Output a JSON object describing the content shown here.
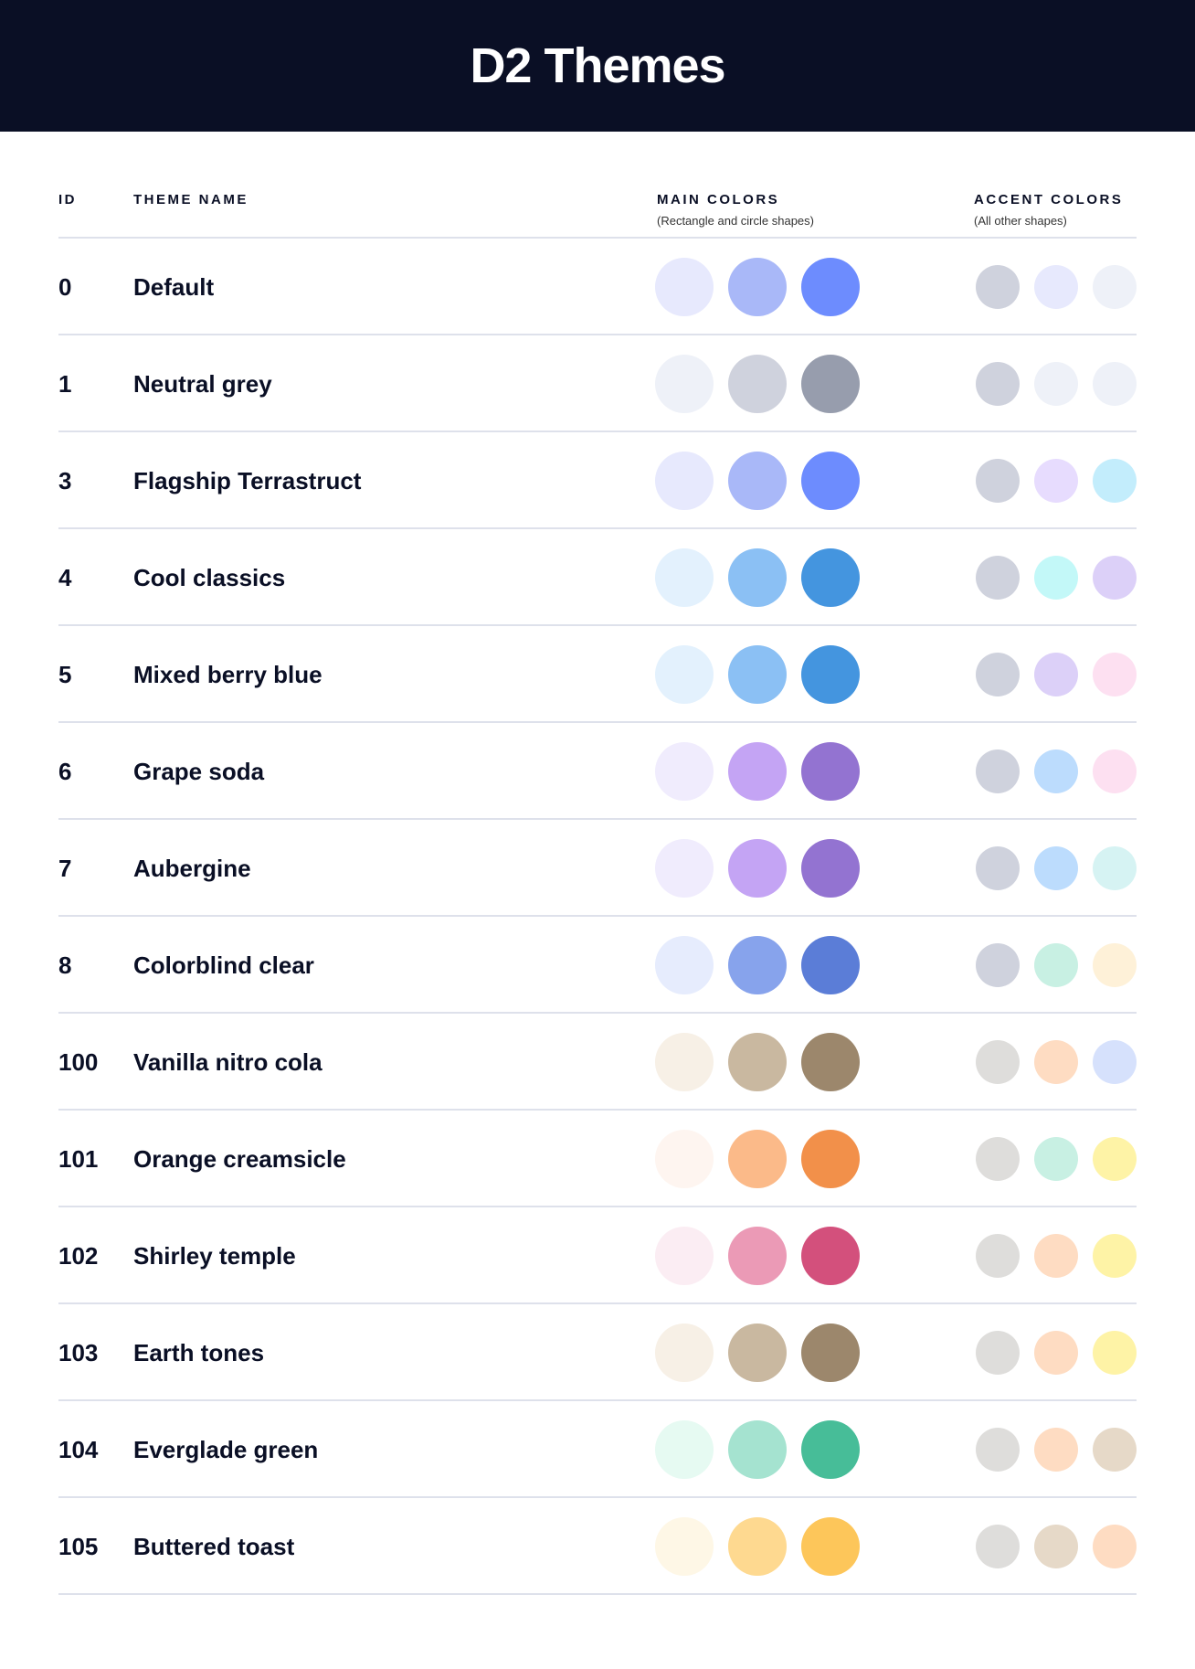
{
  "title": "D2 Themes",
  "headers": {
    "id": "ID",
    "name": "THEME NAME",
    "main": "MAIN COLORS",
    "main_sub": "(Rectangle and circle shapes)",
    "accent": "ACCENT COLORS",
    "accent_sub": "(All other shapes)"
  },
  "themes": [
    {
      "id": "0",
      "name": "Default",
      "main": [
        "#E7E9FD",
        "#A9B8F8",
        "#6D8CFE"
      ],
      "accent": [
        "#CFD2DD",
        "#E7E9FD",
        "#EEF1F8"
      ]
    },
    {
      "id": "1",
      "name": "Neutral grey",
      "main": [
        "#EEF1F8",
        "#CFD2DD",
        "#979DAD"
      ],
      "accent": [
        "#CFD2DD",
        "#EEF1F8",
        "#EEF1F8"
      ]
    },
    {
      "id": "3",
      "name": "Flagship Terrastruct",
      "main": [
        "#E7E9FD",
        "#A9B8F8",
        "#6D8CFE"
      ],
      "accent": [
        "#CFD2DD",
        "#E7DCFE",
        "#C3EDFC"
      ]
    },
    {
      "id": "4",
      "name": "Cool classics",
      "main": [
        "#E3F1FD",
        "#8BC0F4",
        "#4495DF"
      ],
      "accent": [
        "#CFD2DD",
        "#C3F8F8",
        "#DCD0F8"
      ]
    },
    {
      "id": "5",
      "name": "Mixed berry blue",
      "main": [
        "#E3F1FD",
        "#8BC0F4",
        "#4495DF"
      ],
      "accent": [
        "#CFD2DD",
        "#DCD0F8",
        "#FDE0F1"
      ]
    },
    {
      "id": "6",
      "name": "Grape soda",
      "main": [
        "#F0ECFD",
        "#C4A4F4",
        "#9373D1"
      ],
      "accent": [
        "#CFD2DD",
        "#BCDCFD",
        "#FDE0F1"
      ]
    },
    {
      "id": "7",
      "name": "Aubergine",
      "main": [
        "#F0ECFD",
        "#C4A4F4",
        "#9373D1"
      ],
      "accent": [
        "#CFD2DD",
        "#BCDCFD",
        "#D6F3F3"
      ]
    },
    {
      "id": "8",
      "name": "Colorblind clear",
      "main": [
        "#E6ECFD",
        "#87A3EC",
        "#5B7DD7"
      ],
      "accent": [
        "#CFD2DD",
        "#C8F0E3",
        "#FEF1D8"
      ]
    },
    {
      "id": "100",
      "name": "Vanilla nitro cola",
      "main": [
        "#F7F0E6",
        "#C9B8A0",
        "#9C876C"
      ],
      "accent": [
        "#DEDDDB",
        "#FEDCC2",
        "#D6E1FC"
      ]
    },
    {
      "id": "101",
      "name": "Orange creamsicle",
      "main": [
        "#FEF5F0",
        "#FBBA89",
        "#F2904A"
      ],
      "accent": [
        "#DEDDDB",
        "#C8F0E3",
        "#FEF3A6"
      ]
    },
    {
      "id": "102",
      "name": "Shirley temple",
      "main": [
        "#FBEDF3",
        "#EB9AB6",
        "#D3507C"
      ],
      "accent": [
        "#DEDDDB",
        "#FEDCC2",
        "#FEF3A6"
      ]
    },
    {
      "id": "103",
      "name": "Earth tones",
      "main": [
        "#F7F0E6",
        "#C9B8A0",
        "#9C876C"
      ],
      "accent": [
        "#DEDDDB",
        "#FEDCC2",
        "#FEF3A6"
      ]
    },
    {
      "id": "104",
      "name": "Everglade green",
      "main": [
        "#E6FAF2",
        "#A5E3D0",
        "#47BD98"
      ],
      "accent": [
        "#DEDDDB",
        "#FEDCC2",
        "#E6D9C8"
      ]
    },
    {
      "id": "105",
      "name": "Buttered toast",
      "main": [
        "#FEF7E6",
        "#FED990",
        "#FDC65A"
      ],
      "accent": [
        "#DEDDDB",
        "#E6D9C8",
        "#FEDCC2"
      ]
    }
  ]
}
